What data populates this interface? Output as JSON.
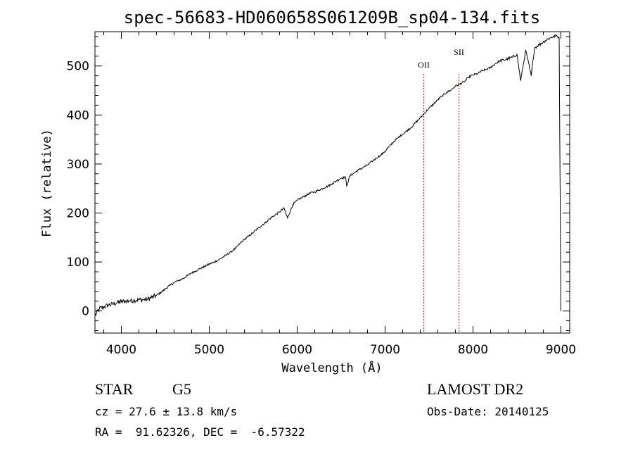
{
  "chart_data": {
    "type": "line",
    "title": "spec-56683-HD060658S061209B_sp04-134.fits",
    "xlabel": "Wavelength (Å)",
    "ylabel": "Flux (relative)",
    "xlim": [
      3700,
      9100
    ],
    "ylim": [
      -45,
      570
    ],
    "xticks": [
      4000,
      5000,
      6000,
      7000,
      8000,
      9000
    ],
    "yticks": [
      0,
      100,
      200,
      300,
      400,
      500
    ],
    "grid": false,
    "series": [
      {
        "x": [
          3700,
          3750,
          3800,
          3850,
          3900,
          3950,
          4000,
          4050,
          4100,
          4150,
          4200,
          4250,
          4300,
          4350,
          4400,
          4450,
          4500,
          4550,
          4600,
          4650,
          4700,
          4750,
          4800,
          4850,
          4900,
          4950,
          5000,
          5050,
          5100,
          5150,
          5200,
          5250,
          5300,
          5350,
          5400,
          5450,
          5500,
          5550,
          5600,
          5650,
          5700,
          5750,
          5800,
          5850,
          5890,
          5950,
          6000,
          6050,
          6100,
          6150,
          6200,
          6250,
          6300,
          6350,
          6400,
          6450,
          6500,
          6550,
          6563,
          6600,
          6650,
          6700,
          6750,
          6800,
          6850,
          6900,
          6950,
          7000,
          7050,
          7100,
          7150,
          7200,
          7250,
          7300,
          7350,
          7400,
          7450,
          7500,
          7550,
          7600,
          7650,
          7700,
          7750,
          7800,
          7850,
          7900,
          7950,
          8000,
          8050,
          8100,
          8150,
          8200,
          8250,
          8300,
          8350,
          8400,
          8450,
          8500,
          8542,
          8600,
          8662,
          8700,
          8750,
          8800,
          8850,
          8900,
          8950,
          8980,
          9000
        ],
        "y": [
          -10,
          5,
          8,
          12,
          14,
          17,
          19,
          20,
          21,
          22,
          23,
          23,
          24,
          28,
          32,
          38,
          45,
          52,
          58,
          62,
          66,
          72,
          78,
          82,
          87,
          91,
          96,
          99,
          104,
          109,
          115,
          121,
          128,
          138,
          146,
          153,
          160,
          168,
          175,
          182,
          190,
          196,
          202,
          210,
          190,
          217,
          226,
          231,
          236,
          241,
          243,
          247,
          251,
          255,
          260,
          266,
          271,
          273,
          255,
          276,
          282,
          288,
          293,
          298,
          305,
          312,
          318,
          326,
          336,
          346,
          354,
          361,
          368,
          375,
          385,
          394,
          404,
          414,
          422,
          431,
          439,
          446,
          451,
          459,
          463,
          468,
          477,
          482,
          484,
          490,
          493,
          497,
          504,
          510,
          512,
          515,
          518,
          524,
          470,
          532,
          480,
          537,
          543,
          549,
          555,
          559,
          562,
          558,
          0
        ]
      }
    ],
    "annotations": [
      {
        "label": "OII",
        "x": 7440
      },
      {
        "label": "SII",
        "x": 7840
      }
    ]
  },
  "info": {
    "object_class": "STAR",
    "subclass": "G5",
    "survey": "LAMOST DR2",
    "cz": "cz = 27.6 ± 13.8 km/s",
    "obs_date": "Obs-Date: 20140125",
    "coords": "RA =  91.62326, DEC =  -6.57322"
  },
  "colors": {
    "spectrum": "#000000",
    "line_marker": "#b22222",
    "axes": "#000000"
  }
}
